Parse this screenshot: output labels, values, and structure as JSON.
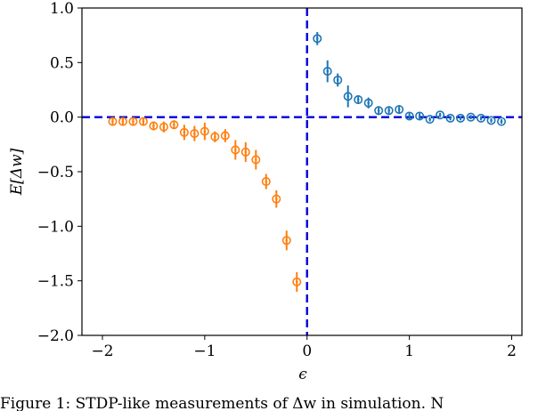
{
  "chart_data": {
    "type": "scatter",
    "xlabel": "ϵ",
    "ylabel": "E[Δw]",
    "xlim": [
      -2.2,
      2.1
    ],
    "ylim": [
      -2.0,
      1.0
    ],
    "x_ticks": [
      -2,
      -1,
      0,
      1,
      2
    ],
    "x_tick_labels": [
      "−2",
      "−1",
      "0",
      "1",
      "2"
    ],
    "y_ticks": [
      1.0,
      0.5,
      0.0,
      -0.5,
      -1.0,
      -1.5,
      -2.0
    ],
    "y_tick_labels": [
      "1.0",
      "0.5",
      "0.0",
      "−0.5",
      "−1.0",
      "−1.5",
      "−2.0"
    ],
    "grid": false,
    "reference_lines": {
      "x": 0,
      "y": 0,
      "color": "#0000dd",
      "style": "dashed"
    },
    "series": [
      {
        "color": "#ff7f0e",
        "points": [
          {
            "x": -1.9,
            "y": -0.04,
            "err": 0.03
          },
          {
            "x": -1.8,
            "y": -0.04,
            "err": 0.03
          },
          {
            "x": -1.7,
            "y": -0.04,
            "err": 0.03
          },
          {
            "x": -1.6,
            "y": -0.04,
            "err": 0.03
          },
          {
            "x": -1.5,
            "y": -0.08,
            "err": 0.04
          },
          {
            "x": -1.4,
            "y": -0.09,
            "err": 0.05
          },
          {
            "x": -1.3,
            "y": -0.07,
            "err": 0.04
          },
          {
            "x": -1.2,
            "y": -0.14,
            "err": 0.07
          },
          {
            "x": -1.1,
            "y": -0.15,
            "err": 0.07
          },
          {
            "x": -1.0,
            "y": -0.13,
            "err": 0.08
          },
          {
            "x": -0.9,
            "y": -0.18,
            "err": 0.05
          },
          {
            "x": -0.8,
            "y": -0.17,
            "err": 0.06
          },
          {
            "x": -0.7,
            "y": -0.3,
            "err": 0.09
          },
          {
            "x": -0.6,
            "y": -0.32,
            "err": 0.09
          },
          {
            "x": -0.5,
            "y": -0.39,
            "err": 0.09
          },
          {
            "x": -0.4,
            "y": -0.59,
            "err": 0.07
          },
          {
            "x": -0.3,
            "y": -0.75,
            "err": 0.08
          },
          {
            "x": -0.2,
            "y": -1.13,
            "err": 0.09
          },
          {
            "x": -0.1,
            "y": -1.51,
            "err": 0.09
          }
        ]
      },
      {
        "color": "#1f77b4",
        "points": [
          {
            "x": 0.1,
            "y": 0.72,
            "err": 0.06
          },
          {
            "x": 0.2,
            "y": 0.42,
            "err": 0.1
          },
          {
            "x": 0.3,
            "y": 0.34,
            "err": 0.06
          },
          {
            "x": 0.4,
            "y": 0.19,
            "err": 0.1
          },
          {
            "x": 0.5,
            "y": 0.16,
            "err": 0.04
          },
          {
            "x": 0.6,
            "y": 0.13,
            "err": 0.05
          },
          {
            "x": 0.7,
            "y": 0.06,
            "err": 0.04
          },
          {
            "x": 0.8,
            "y": 0.06,
            "err": 0.04
          },
          {
            "x": 0.9,
            "y": 0.07,
            "err": 0.04
          },
          {
            "x": 1.0,
            "y": 0.01,
            "err": 0.03
          },
          {
            "x": 1.1,
            "y": 0.01,
            "err": 0.03
          },
          {
            "x": 1.2,
            "y": -0.02,
            "err": 0.02
          },
          {
            "x": 1.3,
            "y": 0.02,
            "err": 0.02
          },
          {
            "x": 1.4,
            "y": -0.01,
            "err": 0.02
          },
          {
            "x": 1.5,
            "y": -0.01,
            "err": 0.02
          },
          {
            "x": 1.6,
            "y": 0.0,
            "err": 0.02
          },
          {
            "x": 1.7,
            "y": -0.01,
            "err": 0.02
          },
          {
            "x": 1.8,
            "y": -0.03,
            "err": 0.02
          },
          {
            "x": 1.9,
            "y": -0.04,
            "err": 0.02
          }
        ]
      }
    ]
  },
  "caption_text": "Figure 1: STDP-like measurements of Δw in simulation. N"
}
